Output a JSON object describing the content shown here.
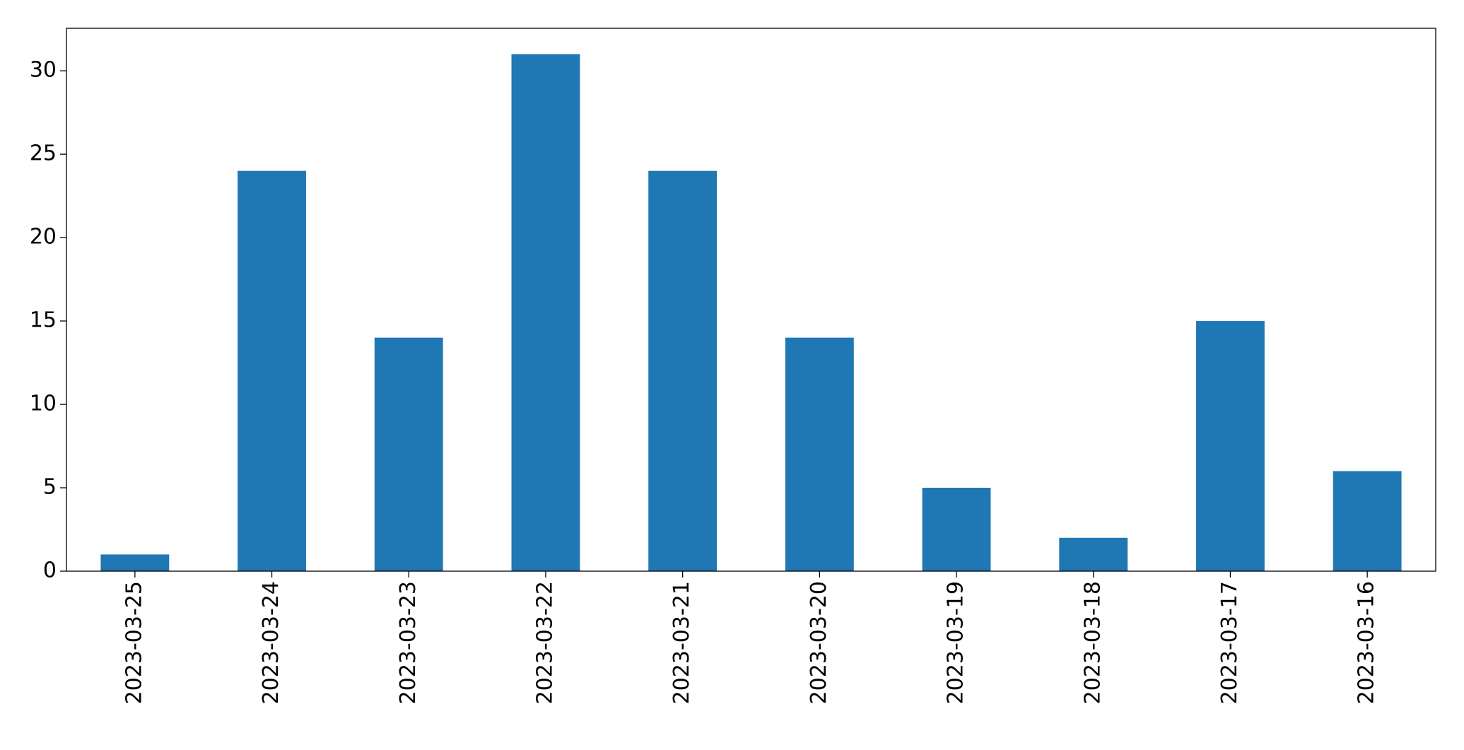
{
  "chart_data": {
    "type": "bar",
    "categories": [
      "2023-03-25",
      "2023-03-24",
      "2023-03-23",
      "2023-03-22",
      "2023-03-21",
      "2023-03-20",
      "2023-03-19",
      "2023-03-18",
      "2023-03-17",
      "2023-03-16"
    ],
    "values": [
      1,
      24,
      14,
      31,
      24,
      14,
      5,
      2,
      15,
      6
    ],
    "color": "#1f77b4",
    "ylim": [
      0,
      32.55
    ],
    "yticks": [
      0,
      5,
      10,
      15,
      20,
      25,
      30
    ],
    "grid": false
  }
}
